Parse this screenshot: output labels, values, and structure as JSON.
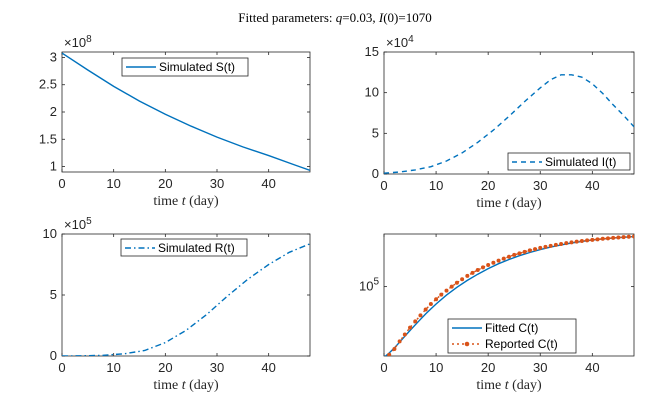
{
  "title_parts": {
    "prefix": "Fitted parameters: ",
    "q_sym": "q",
    "q_val": "=0.03, ",
    "i_sym": "I",
    "i_val": "(0)=1070"
  },
  "xlabel_parts": {
    "pre": "time ",
    "sym": "t",
    "post": " (day)"
  },
  "colors": {
    "blue": "#0072BD",
    "orange": "#D95319",
    "axis": "#262626"
  },
  "chart_data": [
    {
      "id": "S",
      "type": "line",
      "xlim": [
        0,
        48
      ],
      "ylim": [
        0.9,
        3.1
      ],
      "yticks": [
        1,
        1.5,
        2,
        2.5,
        3
      ],
      "ytick_labels": [
        "1",
        "1.5",
        "2",
        "2.5",
        "3"
      ],
      "xticks": [
        0,
        10,
        20,
        30,
        40
      ],
      "xtick_labels": [
        "0",
        "10",
        "20",
        "30",
        "40"
      ],
      "exponent": {
        "base": "×10",
        "power": "8"
      },
      "legend_position": "top-center",
      "series": [
        {
          "name": "Simulated S(t)",
          "style": "solid",
          "x": [
            0,
            5,
            10,
            15,
            20,
            25,
            30,
            35,
            40,
            45,
            48
          ],
          "y": [
            3.08,
            2.77,
            2.47,
            2.2,
            1.96,
            1.74,
            1.54,
            1.36,
            1.2,
            1.03,
            0.93
          ]
        }
      ]
    },
    {
      "id": "I",
      "type": "line",
      "xlim": [
        0,
        48
      ],
      "ylim": [
        0,
        15
      ],
      "yticks": [
        0,
        5,
        10,
        15
      ],
      "ytick_labels": [
        "0",
        "5",
        "10",
        "15"
      ],
      "xticks": [
        0,
        10,
        20,
        30,
        40
      ],
      "xtick_labels": [
        "0",
        "10",
        "20",
        "30",
        "40"
      ],
      "exponent": {
        "base": "×10",
        "power": "4"
      },
      "legend_position": "bottom-right",
      "series": [
        {
          "name": "Simulated I(t)",
          "style": "dashed",
          "x": [
            0,
            3,
            6,
            9,
            12,
            15,
            18,
            21,
            24,
            27,
            30,
            32,
            34,
            36,
            38,
            40,
            42,
            44,
            46,
            48
          ],
          "y": [
            0.1,
            0.25,
            0.5,
            0.9,
            1.6,
            2.6,
            3.9,
            5.4,
            7.1,
            8.9,
            10.6,
            11.6,
            12.2,
            12.2,
            11.9,
            11.1,
            9.9,
            8.5,
            7.2,
            5.8
          ]
        }
      ]
    },
    {
      "id": "R",
      "type": "line",
      "xlim": [
        0,
        48
      ],
      "ylim": [
        0,
        10
      ],
      "yticks": [
        0,
        5,
        10
      ],
      "ytick_labels": [
        "0",
        "5",
        "10"
      ],
      "xticks": [
        0,
        10,
        20,
        30,
        40
      ],
      "xtick_labels": [
        "0",
        "10",
        "20",
        "30",
        "40"
      ],
      "exponent": {
        "base": "×10",
        "power": "5"
      },
      "legend_position": "top-left",
      "series": [
        {
          "name": "Simulated R(t)",
          "style": "dashdot",
          "x": [
            0,
            4,
            8,
            12,
            16,
            20,
            24,
            28,
            32,
            36,
            40,
            44,
            48
          ],
          "y": [
            0.0,
            0.02,
            0.06,
            0.18,
            0.45,
            1.1,
            2.1,
            3.4,
            4.9,
            6.3,
            7.5,
            8.5,
            9.2
          ]
        }
      ]
    },
    {
      "id": "C",
      "type": "line",
      "xlim": [
        0,
        48
      ],
      "ylim": [
        13000,
        470000
      ],
      "yscale": "log",
      "yticks": [
        100000
      ],
      "ytick_labels": [
        {
          "base": "10",
          "power": "5"
        }
      ],
      "xticks": [
        0,
        10,
        20,
        30,
        40
      ],
      "xtick_labels": [
        "0",
        "10",
        "20",
        "30",
        "40"
      ],
      "legend_position": "bottom-right",
      "series": [
        {
          "name": "Fitted C(t)",
          "style": "solid",
          "x": [
            0,
            1,
            2,
            3,
            4,
            5,
            6,
            7,
            8,
            9,
            10,
            12,
            14,
            16,
            18,
            20,
            22,
            24,
            26,
            28,
            30,
            32,
            34,
            36,
            38,
            40,
            42,
            44,
            46,
            48
          ],
          "y": [
            12500,
            14200,
            16500,
            19500,
            23200,
            27500,
            32500,
            38200,
            44800,
            52000,
            60000,
            78000,
            98000,
            120000,
            144000,
            170000,
            196000,
            222000,
            248000,
            273000,
            297000,
            320000,
            341000,
            361000,
            378000,
            394000,
            407000,
            418000,
            427000,
            435000
          ]
        },
        {
          "name": "Reported C(t)",
          "style": "dotted-markers",
          "x": [
            1,
            2,
            3,
            4,
            5,
            6,
            7,
            8,
            9,
            10,
            11,
            12,
            13,
            14,
            15,
            16,
            17,
            18,
            19,
            20,
            21,
            22,
            23,
            24,
            25,
            26,
            27,
            28,
            29,
            30,
            31,
            32,
            33,
            34,
            35,
            36,
            37,
            38,
            39,
            40,
            41,
            42,
            43,
            44,
            45,
            46,
            47,
            48
          ],
          "y": [
            13500,
            16000,
            20000,
            24500,
            30000,
            36000,
            43000,
            51000,
            60000,
            69000,
            79000,
            89000,
            100000,
            112000,
            124000,
            137000,
            150000,
            163000,
            176000,
            189000,
            202000,
            215000,
            228000,
            241000,
            254000,
            266000,
            278000,
            290000,
            301000,
            312000,
            322000,
            332000,
            341000,
            350000,
            359000,
            367000,
            375000,
            382000,
            389000,
            396000,
            402000,
            408000,
            414000,
            419000,
            424000,
            429000,
            433000,
            437000
          ]
        }
      ]
    }
  ]
}
